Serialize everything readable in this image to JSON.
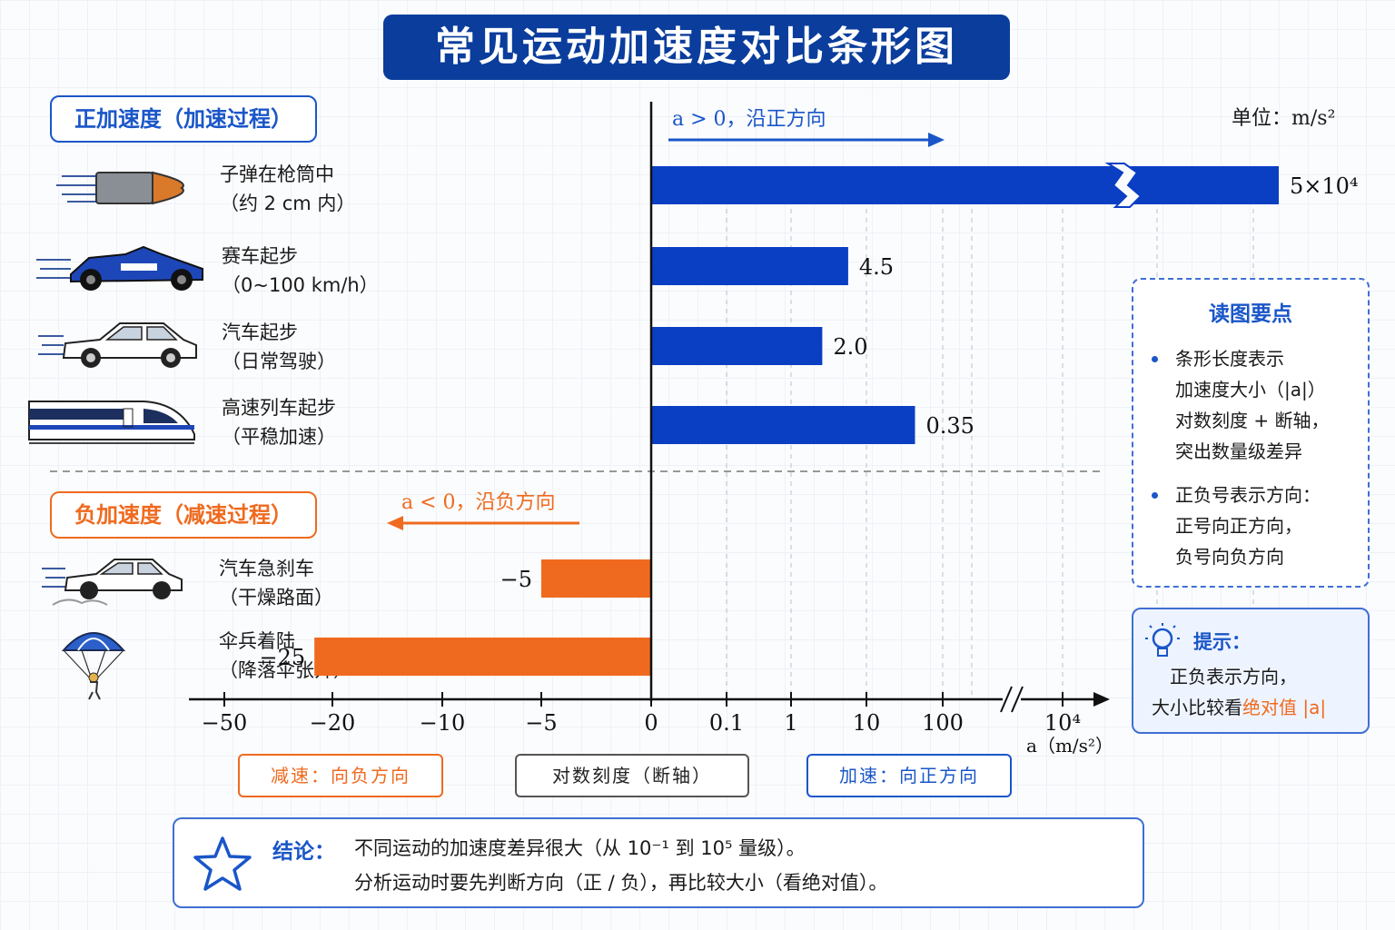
{
  "title": "常见运动加速度对比条形图",
  "sections": {
    "positive": "正加速度（加速过程）",
    "negative": "负加速度（减速过程）"
  },
  "direction": {
    "positive": "a > 0，沿正方向",
    "negative": "a < 0，沿负方向"
  },
  "unit_label": "单位：m/s²",
  "items": [
    {
      "name": "子弹在枪筒中",
      "note": "（约 2 cm 内）",
      "icon": "bullet-icon"
    },
    {
      "name": "赛车起步",
      "note": "（0~100 km/h）",
      "icon": "race-car-icon"
    },
    {
      "name": "汽车起步",
      "note": "（日常驾驶）",
      "icon": "car-icon"
    },
    {
      "name": "高速列车起步",
      "note": "（平稳加速）",
      "icon": "train-icon"
    },
    {
      "name": "汽车急刹车",
      "note": "（干燥路面）",
      "icon": "braking-car-icon"
    },
    {
      "name": "伞兵着陆",
      "note": "（降落伞张开）",
      "icon": "parachute-icon"
    }
  ],
  "chart_data": {
    "type": "bar",
    "orientation": "horizontal",
    "title": "常见运动加速度对比条形图",
    "categories": [
      "子弹在枪筒中",
      "赛车起步",
      "汽车起步",
      "高速列车起步",
      "汽车急刹车",
      "伞兵着陆"
    ],
    "values": [
      50000,
      4.5,
      2.0,
      0.35,
      -5,
      -25
    ],
    "value_labels": [
      "5×10⁴",
      "4.5",
      "2.0",
      "0.35",
      "−5",
      "−25"
    ],
    "xlabel": "a（m/s²）",
    "x_ticks_negative": [
      "−50",
      "−20",
      "−10",
      "−5",
      "0"
    ],
    "x_ticks_positive": [
      "0.1",
      "1",
      "10",
      "100",
      "10⁴"
    ],
    "axis_note": "negative side linear, positive side logarithmic with axis break",
    "colors": {
      "positive": "#0a3fc4",
      "negative": "#ef6a1f"
    }
  },
  "tips": {
    "title": "读图要点",
    "items": [
      [
        "条形长度表示",
        "加速度大小（|a|）",
        "对数刻度 + 断轴，",
        "突出数量级差异"
      ],
      [
        "正负号表示方向：",
        "正号向正方向，",
        "负号向负方向"
      ]
    ]
  },
  "hint": {
    "title": "提示：",
    "line1": "正负表示方向，",
    "line2_prefix": "大小比较看",
    "line2_highlight": "绝对值 |a|"
  },
  "pills": {
    "left": "减速：向负方向",
    "middle": "对数刻度（断轴）",
    "right": "加速：向正方向"
  },
  "conclusion": {
    "label": "结论：",
    "line1": "不同运动的加速度差异很大（从 10⁻¹ 到 10⁵ 量级）。",
    "line2": "分析运动时要先判断方向（正 / 负），再比较大小（看绝对值）。"
  }
}
